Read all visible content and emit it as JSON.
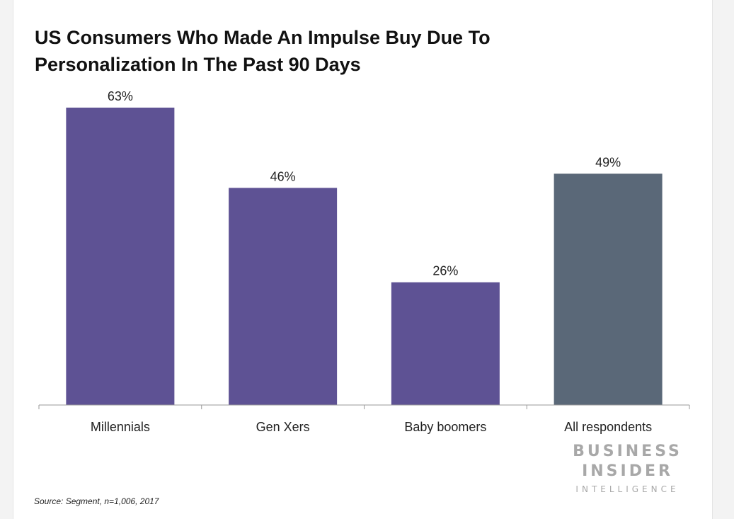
{
  "chart_data": {
    "type": "bar",
    "title_lines": [
      "US Consumers Who Made An Impulse Buy Due To",
      "Personalization In The Past 90 Days"
    ],
    "categories": [
      "Millennials",
      "Gen Xers",
      "Baby boomers",
      "All respondents"
    ],
    "values": [
      63,
      46,
      26,
      49
    ],
    "value_labels": [
      "63%",
      "46%",
      "26%",
      "49%"
    ],
    "unit": "%",
    "ylim": [
      0,
      63
    ],
    "grid": false,
    "legend": "none",
    "colors": [
      "#5e5294",
      "#5e5294",
      "#5e5294",
      "#5a6878"
    ]
  },
  "branding": {
    "line1": "BUSINESS",
    "line2": "INSIDER",
    "line3": "INTELLIGENCE"
  },
  "source": "Source: Segment, n=1,006, 2017",
  "colors": {
    "bar_primary": "#5e5294",
    "bar_total": "#5a6878",
    "axis": "#999999",
    "brand": "#a8a8a8"
  }
}
